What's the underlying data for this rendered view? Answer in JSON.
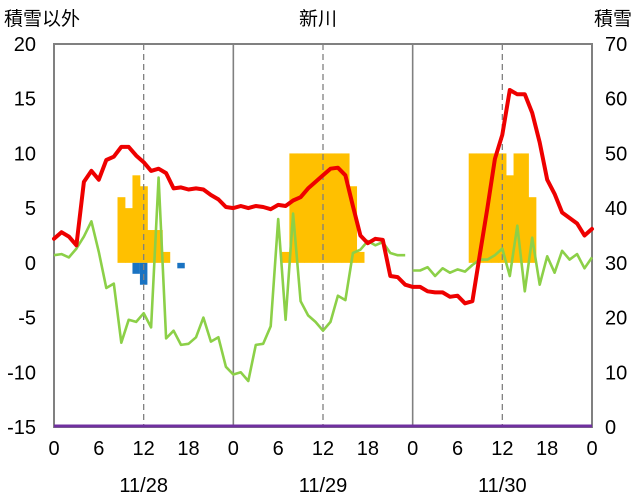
{
  "chart_data": {
    "type": "bar+line",
    "title": "新川",
    "left_axis_label": "積雪以外",
    "right_axis_label": "積雪",
    "left_ylim": [
      -15,
      20
    ],
    "left_yticks": [
      "20",
      "15",
      "10",
      "5",
      "0",
      "-5",
      "-10",
      "-15"
    ],
    "right_ylim": [
      0,
      70
    ],
    "right_yticks": [
      "70",
      "60",
      "50",
      "40",
      "30",
      "20",
      "10",
      "0"
    ],
    "x_hour_ticks": [
      "0",
      "6",
      "12",
      "18",
      "0",
      "6",
      "12",
      "18",
      "0",
      "6",
      "12",
      "18",
      "0"
    ],
    "day_labels": [
      "11/28",
      "11/29",
      "11/30"
    ],
    "hours_total": 72,
    "grid": "dashed-vertical-at-noon",
    "colors": {
      "red": "#ee0000",
      "green": "#8cd048",
      "orange": "#ffc000",
      "blue": "#1a73c2",
      "purple": "#7030a0",
      "frame": "#808080"
    },
    "red_series": [
      [
        0,
        2.2
      ],
      [
        1,
        2.8
      ],
      [
        2,
        2.4
      ],
      [
        3,
        1.6
      ],
      [
        4,
        7.4
      ],
      [
        5,
        8.4
      ],
      [
        6,
        7.6
      ],
      [
        7,
        9.4
      ],
      [
        8,
        9.7
      ],
      [
        9,
        10.6
      ],
      [
        10,
        10.6
      ],
      [
        11,
        9.8
      ],
      [
        12,
        9.2
      ],
      [
        13,
        8.4
      ],
      [
        14,
        8.6
      ],
      [
        15,
        8.2
      ],
      [
        16,
        6.8
      ],
      [
        17,
        6.9
      ],
      [
        18,
        6.7
      ],
      [
        19,
        6.8
      ],
      [
        20,
        6.7
      ],
      [
        21,
        6.2
      ],
      [
        22,
        5.8
      ],
      [
        23,
        5.1
      ],
      [
        24,
        5.0
      ],
      [
        25,
        5.2
      ],
      [
        26,
        5.0
      ],
      [
        27,
        5.2
      ],
      [
        28,
        5.1
      ],
      [
        29,
        4.9
      ],
      [
        30,
        5.3
      ],
      [
        31,
        5.2
      ],
      [
        32,
        5.7
      ],
      [
        33,
        6.0
      ],
      [
        34,
        6.8
      ],
      [
        35,
        7.4
      ],
      [
        36,
        8.0
      ],
      [
        37,
        8.6
      ],
      [
        38,
        8.7
      ],
      [
        39,
        8.0
      ],
      [
        40,
        5.2
      ],
      [
        41,
        2.5
      ],
      [
        42,
        1.8
      ],
      [
        43,
        2.2
      ],
      [
        44,
        2.1
      ],
      [
        45,
        -1.2
      ],
      [
        46,
        -1.3
      ],
      [
        47,
        -2.0
      ],
      [
        48,
        -2.2
      ],
      [
        49,
        -2.2
      ],
      [
        50,
        -2.6
      ],
      [
        51,
        -2.7
      ],
      [
        52,
        -2.7
      ],
      [
        53,
        -3.1
      ],
      [
        54,
        -3.0
      ],
      [
        55,
        -3.7
      ],
      [
        56,
        -3.5
      ],
      [
        57,
        0.8
      ],
      [
        58,
        5.0
      ],
      [
        59,
        9.5
      ],
      [
        60,
        11.7
      ],
      [
        61,
        15.8
      ],
      [
        62,
        15.4
      ],
      [
        63,
        15.4
      ],
      [
        64,
        13.7
      ],
      [
        65,
        11.0
      ],
      [
        66,
        7.6
      ],
      [
        67,
        6.3
      ],
      [
        68,
        4.6
      ],
      [
        69,
        4.1
      ],
      [
        70,
        3.6
      ],
      [
        71,
        2.5
      ],
      [
        72,
        3.1
      ]
    ],
    "green_series": [
      [
        0,
        0.7
      ],
      [
        1,
        0.8
      ],
      [
        2,
        0.5
      ],
      [
        3,
        1.3
      ],
      [
        4,
        2.4
      ],
      [
        5,
        3.8
      ],
      [
        6,
        1.0
      ],
      [
        7,
        -2.3
      ],
      [
        8,
        -1.9
      ],
      [
        9,
        -7.3
      ],
      [
        10,
        -5.2
      ],
      [
        11,
        -5.4
      ],
      [
        12,
        -4.6
      ],
      [
        13,
        -5.9
      ],
      [
        14,
        7.8
      ],
      [
        15,
        -6.9
      ],
      [
        16,
        -6.2
      ],
      [
        17,
        -7.5
      ],
      [
        18,
        -7.4
      ],
      [
        19,
        -6.8
      ],
      [
        20,
        -5.0
      ],
      [
        21,
        -7.2
      ],
      [
        22,
        -6.8
      ],
      [
        23,
        -9.5
      ],
      [
        24,
        -10.2
      ],
      [
        25,
        -10.0
      ],
      [
        26,
        -10.8
      ],
      [
        27,
        -7.5
      ],
      [
        28,
        -7.4
      ],
      [
        29,
        -5.8
      ],
      [
        30,
        4.0
      ],
      [
        31,
        -5.2
      ],
      [
        32,
        4.5
      ],
      [
        33,
        -3.5
      ],
      [
        34,
        -4.8
      ],
      [
        35,
        -5.4
      ],
      [
        36,
        -6.2
      ],
      [
        37,
        -5.4
      ],
      [
        38,
        -3.0
      ],
      [
        39,
        -3.4
      ],
      [
        40,
        0.9
      ],
      [
        41,
        1.2
      ],
      [
        42,
        2.0
      ],
      [
        43,
        1.6
      ],
      [
        44,
        1.9
      ],
      [
        45,
        0.9
      ],
      [
        46,
        0.7
      ],
      [
        47,
        0.7
      ],
      null,
      [
        48,
        -0.7
      ],
      [
        49,
        -0.7
      ],
      [
        50,
        -0.4
      ],
      [
        51,
        -1.2
      ],
      [
        52,
        -0.5
      ],
      [
        53,
        -0.9
      ],
      [
        54,
        -0.6
      ],
      [
        55,
        -0.8
      ],
      [
        56,
        -0.2
      ],
      [
        57,
        0.3
      ],
      [
        58,
        0.3
      ],
      [
        59,
        0.7
      ],
      [
        60,
        1.3
      ],
      [
        61,
        -1.2
      ],
      [
        62,
        3.4
      ],
      [
        63,
        -2.6
      ],
      [
        64,
        2.3
      ],
      [
        65,
        -2.0
      ],
      [
        66,
        0.6
      ],
      [
        67,
        -0.9
      ],
      [
        68,
        1.1
      ],
      [
        69,
        0.3
      ],
      [
        70,
        0.8
      ],
      [
        71,
        -0.5
      ],
      [
        72,
        0.5
      ]
    ],
    "snow_bars": [
      [
        9,
        6.0
      ],
      [
        10,
        5.0
      ],
      [
        11,
        8.0
      ],
      [
        12,
        7.0
      ],
      [
        13,
        3.0
      ],
      [
        14,
        3.0
      ],
      [
        15,
        1.0
      ],
      [
        31,
        1.0
      ],
      [
        32,
        10.0
      ],
      [
        33,
        10.0
      ],
      [
        34,
        10.0
      ],
      [
        35,
        10.0
      ],
      [
        36,
        10.0
      ],
      [
        37,
        10.0
      ],
      [
        38,
        10.0
      ],
      [
        39,
        10.0
      ],
      [
        40,
        7.0
      ],
      [
        41,
        1.0
      ],
      [
        56,
        10.0
      ],
      [
        57,
        10.0
      ],
      [
        58,
        10.0
      ],
      [
        59,
        10.0
      ],
      [
        60,
        10.0
      ],
      [
        61,
        8.0
      ],
      [
        62,
        10.0
      ],
      [
        63,
        10.0
      ],
      [
        64,
        6.0
      ]
    ],
    "blue_bars": [
      [
        11,
        -1.0
      ],
      [
        12,
        -2.0
      ],
      [
        17,
        -0.5
      ]
    ],
    "purple_line_value": 0
  }
}
